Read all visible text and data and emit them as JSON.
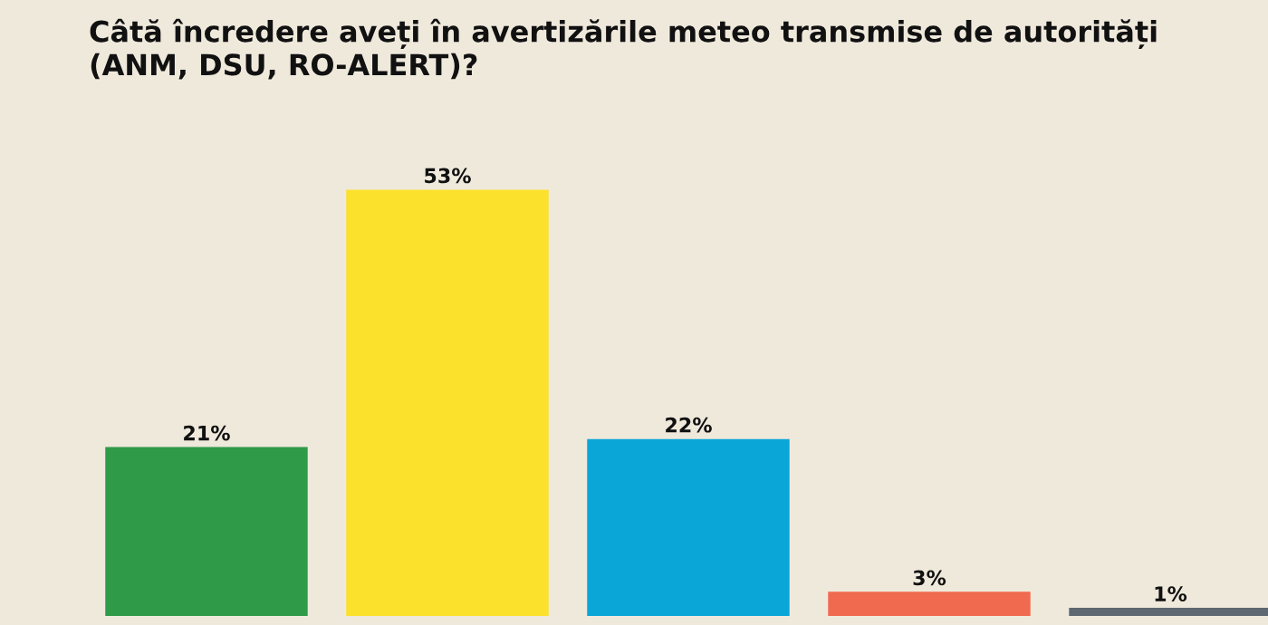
{
  "chart_data": {
    "type": "bar",
    "title": "Câtă încredere aveți în avertizările meteo transmise de autorități (ANM, DSU, RO-ALERT)?",
    "categories": [
      null,
      null,
      null,
      null,
      null
    ],
    "values": [
      21,
      53,
      22,
      3,
      1
    ],
    "colors": [
      "#2f9a48",
      "#fbe02c",
      "#0aa6d8",
      "#f06a4f",
      "#5d6873"
    ],
    "value_labels": [
      "21%",
      "53%",
      "22%",
      "3%",
      "1%"
    ],
    "grid": false,
    "legend": false
  }
}
